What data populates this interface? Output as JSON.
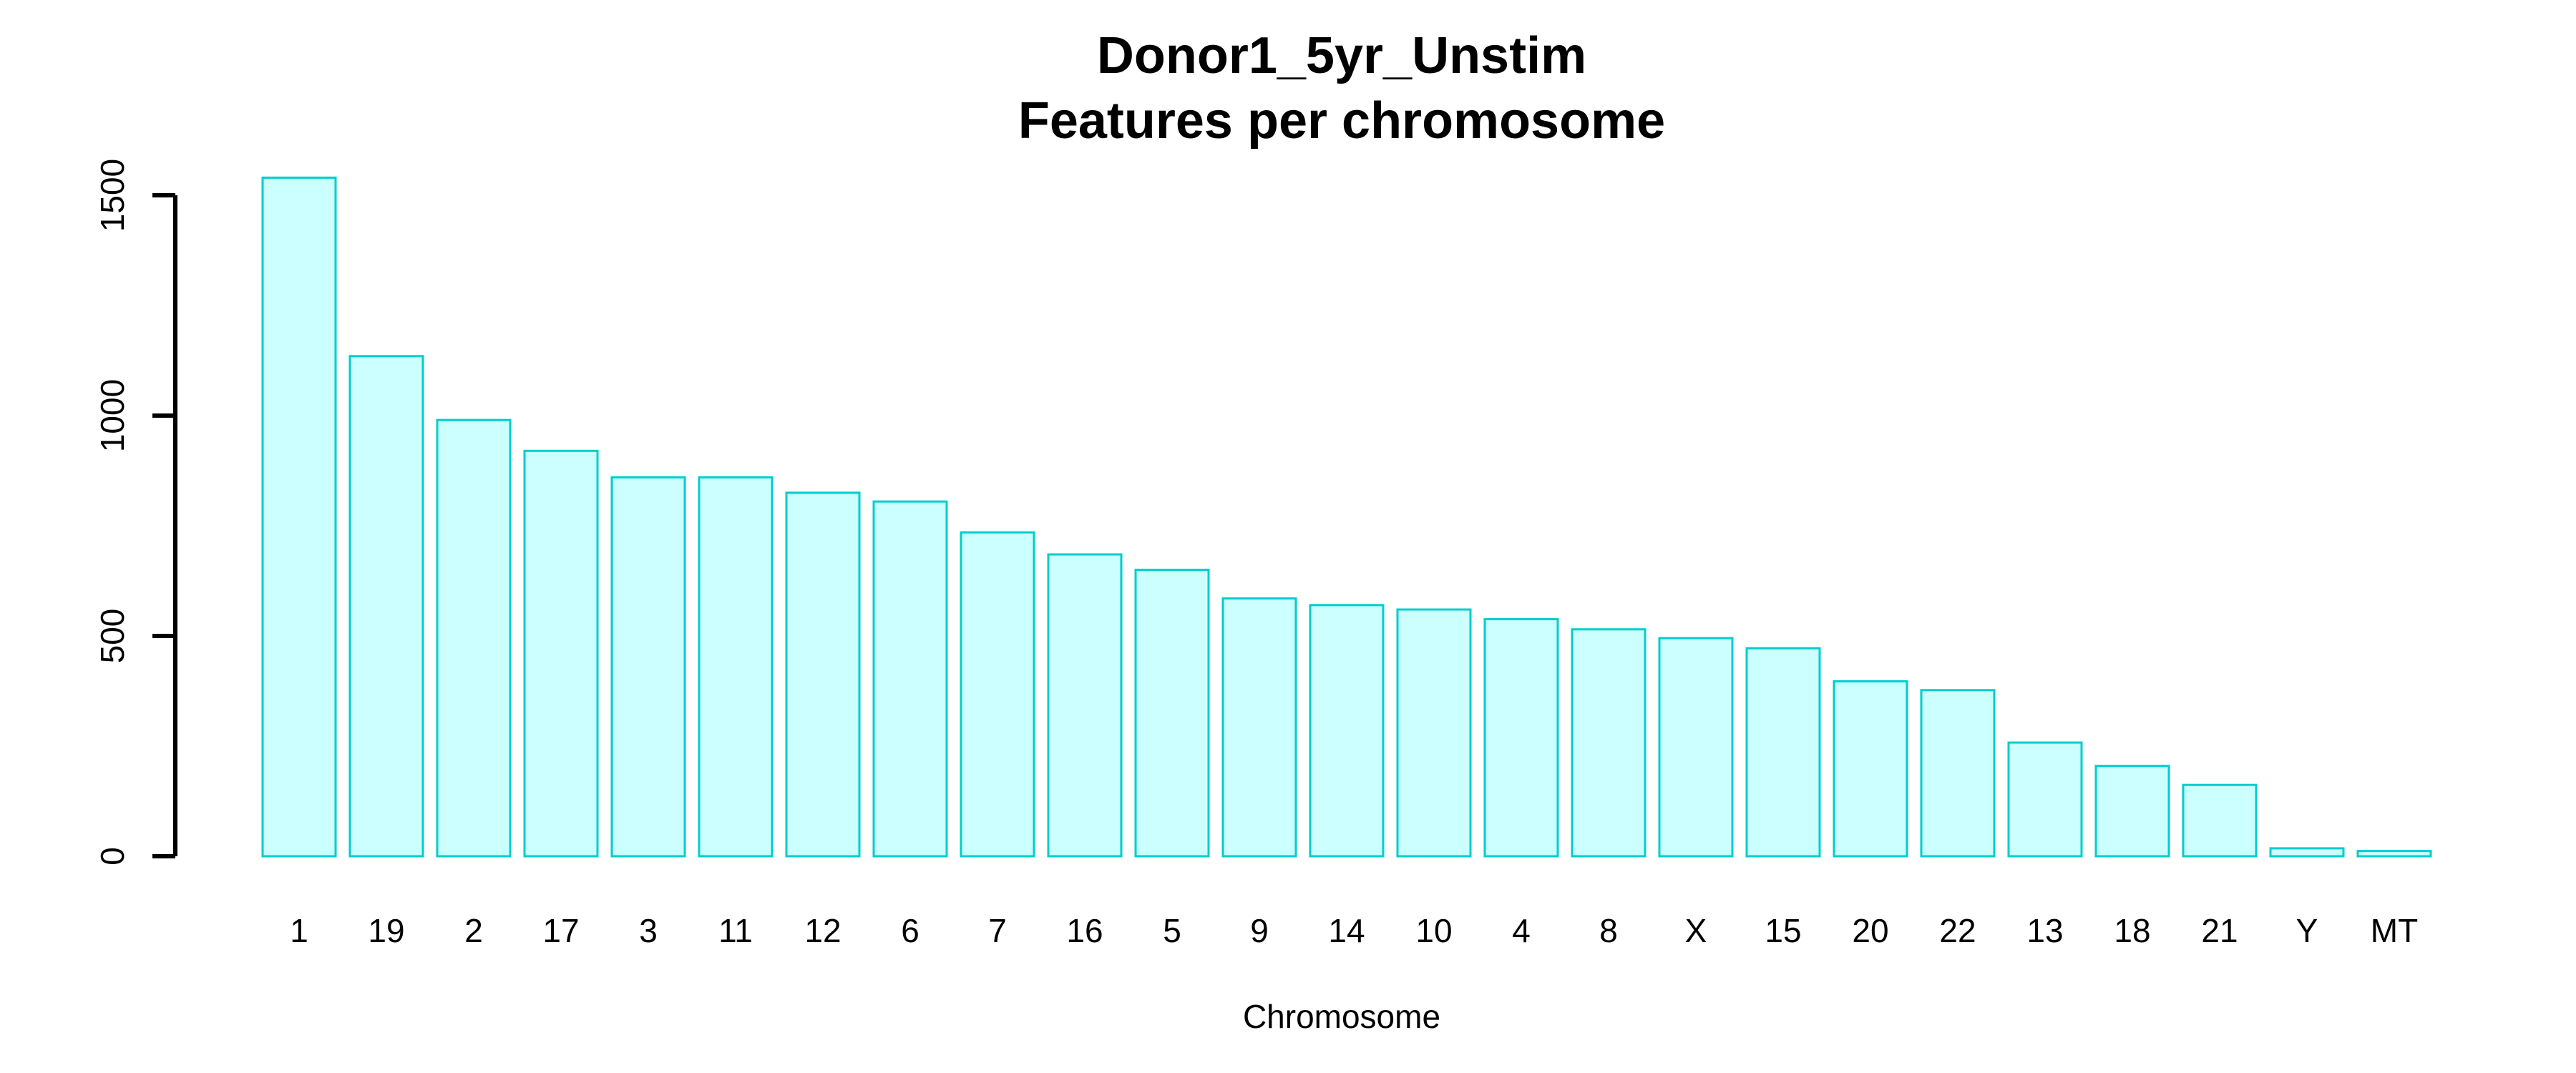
{
  "chart_data": {
    "type": "bar",
    "title": "Donor1_5yr_Unstim",
    "subtitle": "Features per chromosome",
    "xlabel": "Chromosome",
    "ylabel": "",
    "ylim": [
      0,
      1600
    ],
    "yticks": [
      0,
      500,
      1000,
      1500
    ],
    "categories": [
      "1",
      "19",
      "2",
      "17",
      "3",
      "11",
      "12",
      "6",
      "7",
      "16",
      "5",
      "9",
      "14",
      "10",
      "4",
      "8",
      "X",
      "15",
      "20",
      "22",
      "13",
      "18",
      "21",
      "Y",
      "MT"
    ],
    "values": [
      1540,
      1135,
      990,
      920,
      860,
      860,
      825,
      805,
      735,
      685,
      650,
      585,
      570,
      560,
      538,
      515,
      495,
      472,
      397,
      377,
      258,
      205,
      162,
      18,
      12
    ],
    "bar_fill": "#CCFFFF",
    "bar_border": "#00CDCD",
    "axis_color": "#000000",
    "grid": false
  }
}
